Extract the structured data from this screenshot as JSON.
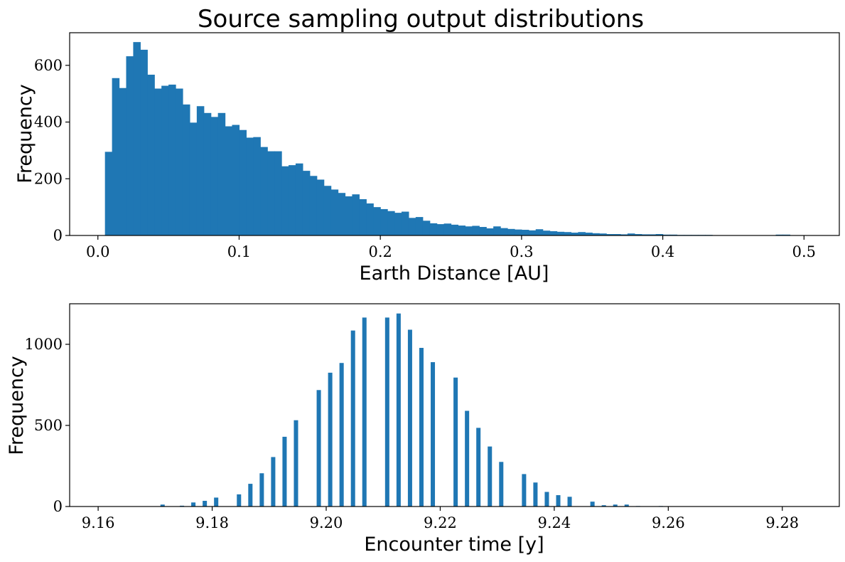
{
  "figure": {
    "title": "Source sampling output distributions",
    "bar_color": "#1f77b4"
  },
  "chart_data": [
    {
      "type": "bar",
      "name": "top-histogram",
      "title": "Source sampling output distributions",
      "xlabel": "Earth Distance [AU]",
      "ylabel": "Frequency",
      "xlim": [
        -0.02,
        0.525
      ],
      "ylim": [
        0,
        715
      ],
      "xticks": [
        0.0,
        0.1,
        0.2,
        0.3,
        0.4,
        0.5
      ],
      "xtick_labels": [
        "0.0",
        "0.1",
        "0.2",
        "0.3",
        "0.4",
        "0.5"
      ],
      "yticks": [
        0,
        200,
        400,
        600
      ],
      "ytick_labels": [
        "0",
        "200",
        "400",
        "600"
      ],
      "bin_start": 0.005,
      "bin_width": 0.005,
      "values": [
        295,
        555,
        520,
        632,
        682,
        655,
        567,
        518,
        528,
        532,
        518,
        462,
        398,
        456,
        432,
        418,
        432,
        385,
        390,
        372,
        345,
        347,
        312,
        297,
        297,
        244,
        248,
        254,
        228,
        210,
        197,
        175,
        162,
        150,
        138,
        145,
        128,
        113,
        100,
        93,
        86,
        80,
        84,
        62,
        65,
        52,
        43,
        40,
        42,
        38,
        35,
        32,
        34,
        30,
        25,
        32,
        26,
        23,
        21,
        20,
        18,
        22,
        17,
        15,
        13,
        12,
        10,
        12,
        10,
        8,
        7,
        5,
        5,
        4,
        7,
        5,
        4,
        4,
        5,
        3,
        3,
        2,
        2,
        2,
        2,
        2,
        1,
        1,
        1,
        1,
        1,
        1,
        1,
        1,
        1,
        3,
        3,
        1,
        1,
        1
      ]
    },
    {
      "type": "bar",
      "name": "bottom-histogram",
      "xlabel": "Encounter time [y]",
      "ylabel": "Frequency",
      "xlim": [
        9.155,
        9.29
      ],
      "ylim": [
        0,
        1250
      ],
      "xticks": [
        9.16,
        9.18,
        9.2,
        9.22,
        9.24,
        9.26,
        9.28
      ],
      "xtick_labels": [
        "9.16",
        "9.18",
        "9.20",
        "9.22",
        "9.24",
        "9.26",
        "9.28"
      ],
      "yticks": [
        0,
        500,
        1000
      ],
      "ytick_labels": [
        "0",
        "500",
        "1000"
      ],
      "bar_width": 0.00075,
      "x": [
        9.1713,
        9.1747,
        9.1767,
        9.1787,
        9.1807,
        9.1847,
        9.1867,
        9.1887,
        9.1907,
        9.1927,
        9.1947,
        9.1987,
        9.2007,
        9.2027,
        9.2047,
        9.2067,
        9.2107,
        9.2127,
        9.2147,
        9.2167,
        9.2187,
        9.2227,
        9.2247,
        9.2267,
        9.2287,
        9.2307,
        9.2347,
        9.2367,
        9.2387,
        9.2407,
        9.2427,
        9.2467,
        9.2487,
        9.2507,
        9.2527,
        9.2547,
        9.2587,
        9.2607,
        9.2627,
        9.2647,
        9.2667,
        9.2787
      ],
      "values": [
        12,
        5,
        25,
        35,
        55,
        75,
        140,
        205,
        305,
        430,
        532,
        718,
        825,
        885,
        1085,
        1165,
        1165,
        1190,
        1090,
        978,
        890,
        795,
        590,
        485,
        370,
        275,
        200,
        148,
        90,
        70,
        60,
        30,
        8,
        12,
        12,
        3,
        3,
        2,
        2,
        2,
        2,
        2
      ]
    }
  ]
}
